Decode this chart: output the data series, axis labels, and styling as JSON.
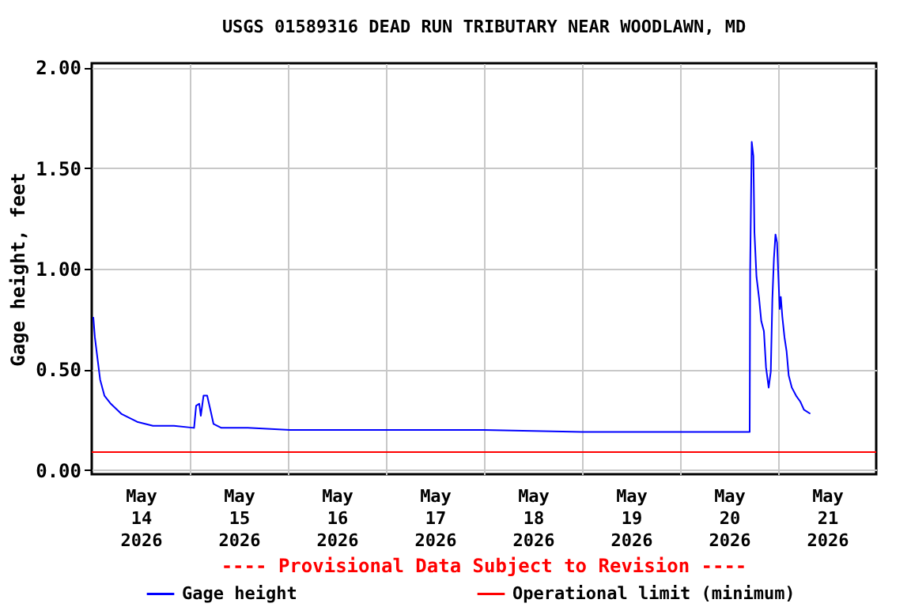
{
  "chart_data": {
    "type": "line",
    "title": "USGS 01589316 DEAD RUN TRIBUTARY NEAR WOODLAWN, MD",
    "ylabel": "Gage height, feet",
    "annotations": [
      "---- Provisional Data Subject to Revision ----"
    ],
    "x": [
      "2026-05-14T00:23",
      "2026-05-14T00:46",
      "2026-05-14T01:26",
      "2026-05-14T02:03",
      "2026-05-14T03:06",
      "2026-05-14T04:39",
      "2026-05-14T07:14",
      "2026-05-14T11:07",
      "2026-05-14T14:59",
      "2026-05-14T20:08",
      "2026-05-15T01:03",
      "2026-05-15T01:33",
      "2026-05-15T02:19",
      "2026-05-15T02:42",
      "2026-05-15T03:22",
      "2026-05-15T04:15",
      "2026-05-15T05:09",
      "2026-05-15T05:48",
      "2026-05-15T07:44",
      "2026-05-15T14:12",
      "2026-05-16T00:30",
      "2026-05-17T00:00",
      "2026-05-18T00:00",
      "2026-05-19T00:00",
      "2026-05-20T12:00",
      "2026-05-20T17:02",
      "2026-05-20T17:09",
      "2026-05-20T17:32",
      "2026-05-20T17:56",
      "2026-05-20T18:12",
      "2026-05-20T18:42",
      "2026-05-20T19:21",
      "2026-05-20T19:52",
      "2026-05-20T20:31",
      "2026-05-20T21:02",
      "2026-05-20T21:41",
      "2026-05-20T22:12",
      "2026-05-20T22:35",
      "2026-05-20T22:58",
      "2026-05-20T23:21",
      "2026-05-20T23:44",
      "2026-05-21T00:00",
      "2026-05-21T00:23",
      "2026-05-21T00:39",
      "2026-05-21T01:02",
      "2026-05-21T01:33",
      "2026-05-21T02:04",
      "2026-05-21T02:35",
      "2026-05-21T03:21",
      "2026-05-21T04:23",
      "2026-05-21T05:26",
      "2026-05-21T06:19",
      "2026-05-21T07:52"
    ],
    "series": [
      {
        "name": "Gage height",
        "color": "#0000ff",
        "values": [
          0.76,
          0.66,
          0.55,
          0.45,
          0.37,
          0.33,
          0.28,
          0.24,
          0.22,
          0.22,
          0.21,
          0.32,
          0.33,
          0.27,
          0.37,
          0.37,
          0.29,
          0.23,
          0.21,
          0.21,
          0.2,
          0.2,
          0.2,
          0.19,
          0.19,
          0.19,
          0.99,
          1.63,
          1.56,
          1.18,
          0.96,
          0.85,
          0.74,
          0.69,
          0.51,
          0.41,
          0.49,
          0.85,
          1.05,
          1.17,
          1.13,
          0.99,
          0.8,
          0.86,
          0.76,
          0.66,
          0.59,
          0.47,
          0.41,
          0.37,
          0.34,
          0.3,
          0.28
        ]
      }
    ],
    "ref_lines": [
      {
        "axis": "y",
        "value": 0.09,
        "label": "Operational limit (minimum)",
        "color": "#ff0000"
      }
    ],
    "xlim": [
      "2026-05-14T00:00",
      "2026-05-22T00:00"
    ],
    "xticks": [
      {
        "value": "2026-05-14T12:00",
        "label": "May\n14\n2026"
      },
      {
        "value": "2026-05-15T12:00",
        "label": "May\n15\n2026"
      },
      {
        "value": "2026-05-16T12:00",
        "label": "May\n16\n2026"
      },
      {
        "value": "2026-05-17T12:00",
        "label": "May\n17\n2026"
      },
      {
        "value": "2026-05-18T12:00",
        "label": "May\n18\n2026"
      },
      {
        "value": "2026-05-19T12:00",
        "label": "May\n19\n2026"
      },
      {
        "value": "2026-05-20T12:00",
        "label": "May\n20\n2026"
      },
      {
        "value": "2026-05-21T12:00",
        "label": "May\n21\n2026"
      },
      {
        "value": "2026-05-15T00:00",
        "label": null
      },
      {
        "value": "2026-05-16T00:00",
        "label": null
      },
      {
        "value": "2026-05-17T00:00",
        "label": null
      },
      {
        "value": "2026-05-18T00:00",
        "label": null
      },
      {
        "value": "2026-05-19T00:00",
        "label": null
      },
      {
        "value": "2026-05-20T00:00",
        "label": null
      },
      {
        "value": "2026-05-21T00:00",
        "label": null
      }
    ],
    "ylim": [
      -0.02,
      2.02
    ],
    "yticks": [
      {
        "value": 0,
        "label": "0.00"
      },
      {
        "value": 0.5,
        "label": "0.50"
      },
      {
        "value": 1,
        "label": "1.00"
      },
      {
        "value": 1.5,
        "label": "1.50"
      },
      {
        "value": 2,
        "label": "2.00"
      }
    ],
    "grid": true,
    "legend": "bottom",
    "line_style": "solid",
    "marker": "none"
  }
}
